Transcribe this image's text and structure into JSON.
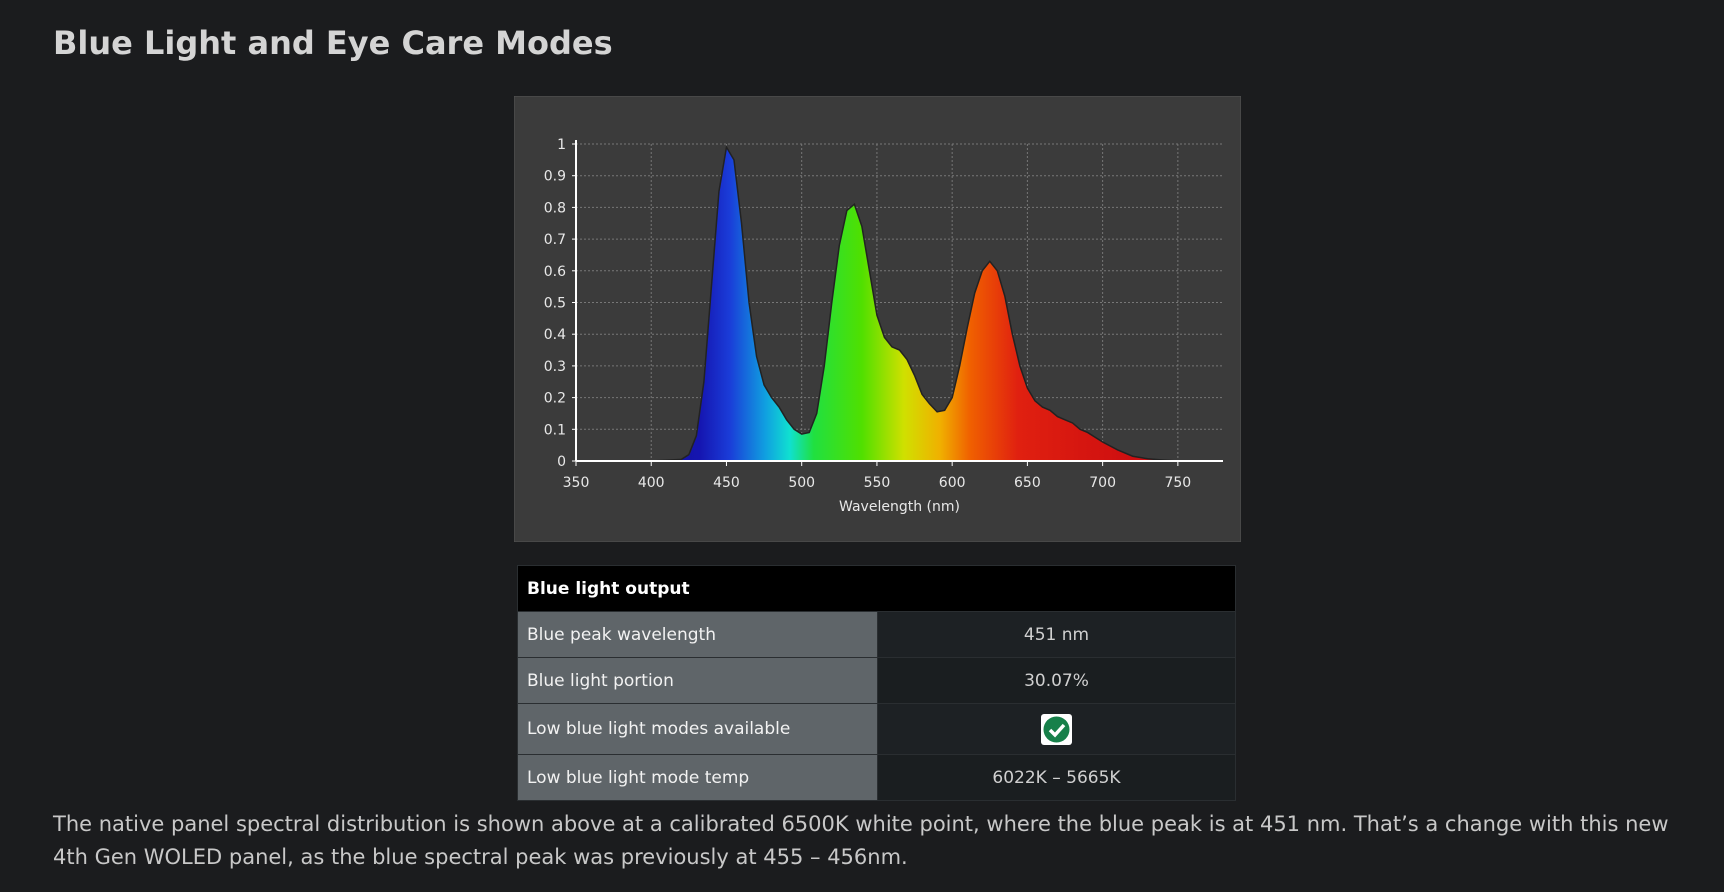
{
  "heading": "Blue Light and Eye Care Modes",
  "chart_data": {
    "type": "area",
    "xlabel": "Wavelength (nm)",
    "x": [
      380,
      400,
      420,
      425,
      430,
      435,
      440,
      445,
      450,
      455,
      460,
      465,
      470,
      475,
      480,
      485,
      490,
      495,
      500,
      505,
      510,
      515,
      520,
      525,
      530,
      535,
      540,
      545,
      550,
      555,
      560,
      565,
      570,
      575,
      580,
      585,
      590,
      595,
      600,
      605,
      610,
      615,
      620,
      625,
      630,
      635,
      640,
      645,
      650,
      655,
      660,
      665,
      670,
      675,
      680,
      685,
      690,
      695,
      700,
      710,
      720,
      730,
      740,
      750,
      780
    ],
    "values": [
      0,
      0,
      0.005,
      0.02,
      0.08,
      0.25,
      0.55,
      0.85,
      0.99,
      0.95,
      0.75,
      0.5,
      0.33,
      0.24,
      0.2,
      0.17,
      0.13,
      0.1,
      0.085,
      0.09,
      0.15,
      0.3,
      0.5,
      0.68,
      0.79,
      0.81,
      0.74,
      0.6,
      0.46,
      0.39,
      0.36,
      0.35,
      0.32,
      0.27,
      0.21,
      0.18,
      0.155,
      0.16,
      0.2,
      0.3,
      0.42,
      0.53,
      0.6,
      0.63,
      0.6,
      0.52,
      0.4,
      0.3,
      0.23,
      0.19,
      0.17,
      0.16,
      0.14,
      0.13,
      0.12,
      0.1,
      0.09,
      0.075,
      0.06,
      0.035,
      0.015,
      0.007,
      0.003,
      0,
      0
    ],
    "xlim": [
      350,
      780
    ],
    "ylim": [
      0,
      1
    ],
    "xticks": [
      350,
      400,
      450,
      500,
      550,
      600,
      650,
      700,
      750
    ],
    "yticks": [
      0,
      0.1,
      0.2,
      0.3,
      0.4,
      0.5,
      0.6,
      0.7,
      0.8,
      0.9,
      1
    ],
    "grid": true
  },
  "table": {
    "header": "Blue light output",
    "rows": [
      [
        "Blue peak wavelength",
        "451 nm"
      ],
      [
        "Blue light portion",
        "30.07%"
      ],
      [
        "Low blue light modes available"
      ],
      [
        "Low blue light mode temp",
        "6022K – 5665K"
      ]
    ]
  },
  "paragraph": "The native panel spectral distribution is shown above at a calibrated 6500K white point, where the blue peak is at 451 nm. That’s a change with this new 4th Gen WOLED panel, as the blue spectral peak was previously at 455 – 456nm."
}
